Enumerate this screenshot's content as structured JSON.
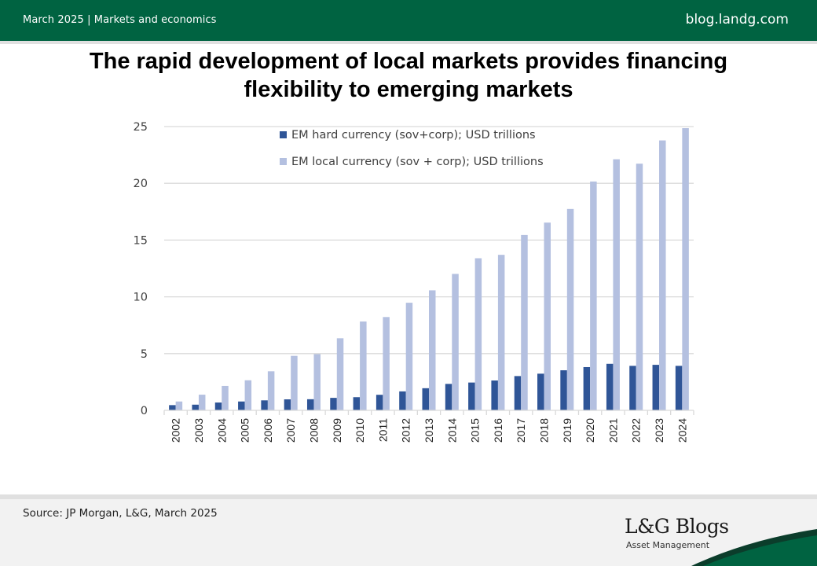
{
  "header": {
    "left_text": "March 2025 | Markets and economics",
    "right_text": "blog.landg.com"
  },
  "title": {
    "line1": "The rapid development of local markets provides financing",
    "line2": "flexibility to emerging markets"
  },
  "colors": {
    "brand_green": "#006341",
    "brand_dark": "#0b3d2b",
    "hard_series": "#2f5597",
    "local_series": "#b4c0e0",
    "grid": "#d9d9d9"
  },
  "chart_data": {
    "type": "bar",
    "title": "",
    "xlabel": "",
    "ylabel": "",
    "ylim": [
      0,
      25
    ],
    "yticks": [
      0,
      5,
      10,
      15,
      20,
      25
    ],
    "grid": true,
    "legend_position": "top-center",
    "categories": [
      "2002",
      "2003",
      "2004",
      "2005",
      "2006",
      "2007",
      "2008",
      "2009",
      "2010",
      "2011",
      "2012",
      "2013",
      "2014",
      "2015",
      "2016",
      "2017",
      "2018",
      "2019",
      "2020",
      "2021",
      "2022",
      "2023",
      "2024"
    ],
    "series": [
      {
        "name": "EM hard currency (sov+corp); USD trillions",
        "color": "#2f5597",
        "values": [
          0.46,
          0.5,
          0.69,
          0.78,
          0.88,
          0.97,
          0.98,
          1.1,
          1.16,
          1.37,
          1.67,
          1.95,
          2.33,
          2.45,
          2.63,
          3.02,
          3.23,
          3.53,
          3.81,
          4.1,
          3.92,
          4.01,
          3.92
        ]
      },
      {
        "name": "EM local currency (sov + corp); USD trillions",
        "color": "#b4c0e0",
        "values": [
          0.78,
          1.38,
          2.15,
          2.65,
          3.44,
          4.8,
          4.95,
          6.35,
          7.83,
          8.22,
          9.48,
          10.57,
          12.02,
          13.4,
          13.7,
          15.45,
          16.54,
          17.74,
          20.16,
          22.12,
          21.73,
          23.78,
          24.86
        ]
      }
    ]
  },
  "footer": {
    "source": "Source: JP Morgan, L&G, March 2025",
    "logo": "L&G Blogs",
    "logo_sub": "Asset Management"
  }
}
